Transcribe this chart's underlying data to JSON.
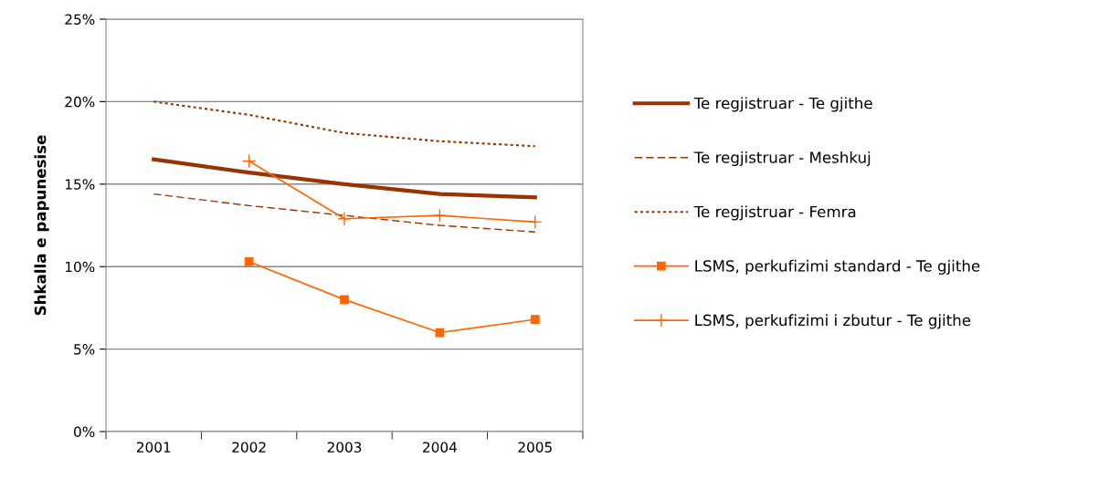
{
  "chart_data": {
    "type": "line",
    "ylabel": "Shkalla e papunesise",
    "categories": [
      "2001",
      "2002",
      "2003",
      "2004",
      "2005"
    ],
    "series": [
      {
        "name": "Te regjistruar - Te gjithe",
        "color": "#993300",
        "values": [
          16.5,
          15.7,
          15.0,
          14.4,
          14.2
        ],
        "line_style": "solid"
      },
      {
        "name": "Te regjistruar - Meshkuj",
        "color": "#993300",
        "values": [
          14.4,
          13.7,
          13.1,
          12.5,
          12.1
        ],
        "line_style": "dashed"
      },
      {
        "name": "Te regjistruar - Femra",
        "color": "#993300",
        "values": [
          20.0,
          19.2,
          18.1,
          17.6,
          17.3
        ],
        "line_style": "dotted"
      },
      {
        "name": "LSMS, perkufizimi standard - Te gjithe",
        "color": "#ff6600",
        "values": [
          null,
          10.3,
          8.0,
          6.0,
          6.8
        ],
        "line_style": "solid",
        "marker": "square"
      },
      {
        "name": "LSMS, perkufizimi i zbutur - Te gjithe",
        "color": "#ff6600",
        "values": [
          null,
          16.4,
          12.9,
          13.1,
          12.7
        ],
        "line_style": "solid",
        "marker": "cross"
      }
    ],
    "ylim": [
      0,
      25
    ],
    "yticks": [
      {
        "value": 0,
        "label": "0%"
      },
      {
        "value": 5,
        "label": "5%"
      },
      {
        "value": 10,
        "label": "10%"
      },
      {
        "value": 15,
        "label": "15%"
      },
      {
        "value": 20,
        "label": "20%"
      },
      {
        "value": 25,
        "label": "25%"
      }
    ],
    "grid": "y",
    "legend": "right"
  }
}
